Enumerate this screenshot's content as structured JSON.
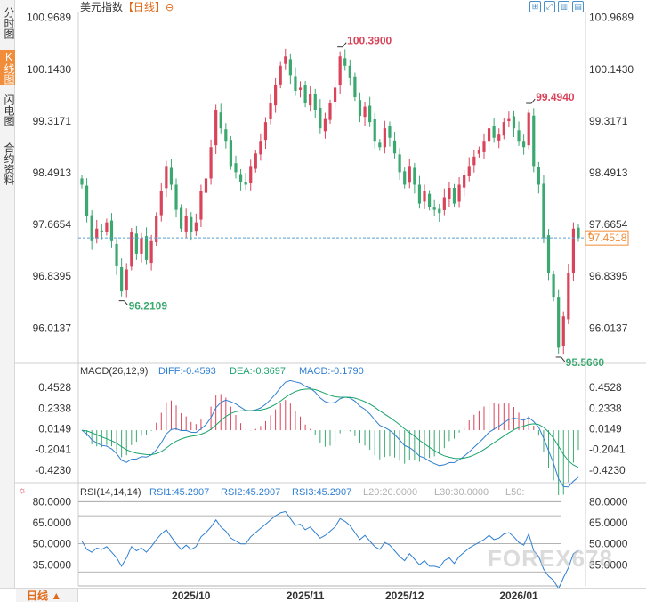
{
  "sidebar": {
    "tabs": [
      {
        "label": "分时图",
        "active": false
      },
      {
        "label": "K线图",
        "active": true
      },
      {
        "label": "闪电图",
        "active": false
      },
      {
        "label": "合约资料",
        "active": false
      }
    ]
  },
  "header": {
    "title": "美元指数",
    "period_tag": "【日线】",
    "settings_glyph": "⊖"
  },
  "toolbar": {
    "icons": [
      "fullscreen-icon",
      "expand-icon",
      "chart-type-icon",
      "settings-panel-icon"
    ]
  },
  "chart_data": {
    "type": "candlestick",
    "price_axis": {
      "ticks": [
        "100.9689",
        "100.1430",
        "99.3171",
        "98.4913",
        "97.6654",
        "96.8395",
        "96.0137"
      ],
      "min": 95.45,
      "max": 101.05
    },
    "current_price": {
      "label": "97.4518",
      "value": 97.4518
    },
    "annotations": [
      {
        "label": "100.3900",
        "type": "high",
        "index": 52
      },
      {
        "label": "99.4940",
        "type": "high",
        "index": 90
      },
      {
        "label": "96.2109",
        "type": "low",
        "index": 8
      },
      {
        "label": "95.5660",
        "type": "low",
        "index": 96
      }
    ],
    "closes": [
      98.3,
      97.8,
      97.4,
      97.6,
      97.55,
      97.7,
      97.4,
      97.0,
      96.6,
      96.95,
      97.55,
      97.2,
      97.45,
      97.1,
      97.4,
      97.8,
      98.2,
      98.6,
      98.3,
      97.9,
      97.6,
      97.8,
      97.55,
      97.7,
      98.2,
      98.4,
      98.9,
      99.5,
      99.2,
      99.0,
      98.6,
      98.5,
      98.35,
      98.3,
      98.6,
      98.8,
      99.0,
      99.3,
      99.6,
      99.9,
      100.2,
      100.35,
      100.05,
      99.8,
      99.85,
      99.6,
      99.75,
      99.5,
      99.2,
      99.35,
      99.6,
      99.85,
      100.35,
      100.2,
      100.0,
      99.7,
      99.4,
      99.55,
      99.3,
      99.0,
      98.9,
      99.2,
      99.05,
      98.8,
      98.5,
      98.3,
      98.6,
      98.3,
      98.0,
      98.2,
      97.95,
      97.9,
      97.85,
      98.1,
      98.25,
      98.0,
      98.3,
      98.45,
      98.6,
      98.75,
      98.85,
      99.0,
      99.2,
      99.05,
      99.1,
      99.3,
      99.35,
      99.2,
      99.0,
      98.9,
      99.45,
      98.6,
      98.3,
      97.45,
      96.9,
      96.5,
      95.7,
      96.2,
      96.9,
      97.6,
      97.45
    ],
    "dates": [
      "2025/10",
      "2025/11",
      "2025/12",
      "2026/01"
    ],
    "date_indices": [
      22,
      45,
      65,
      88
    ],
    "macd": {
      "title": "MACD(26,12,9)",
      "diff_label": "DIFF:-0.4593",
      "dea_label": "DEA:-0.3697",
      "macd_label": "MACD:-0.1790",
      "ticks": [
        "0.4528",
        "0.2338",
        "0.0149",
        "-0.2041",
        "-0.4230"
      ],
      "min": -0.52,
      "max": 0.54,
      "colors": {
        "diff": "#2f7fd1",
        "dea": "#1aa46b",
        "pos": "#d9445a",
        "neg": "#3ba870"
      }
    },
    "rsi": {
      "title": "RSI(14,14,14)",
      "labels": [
        {
          "text": "RSI1:45.2907",
          "color": "#2f7fd1"
        },
        {
          "text": "RSI2:45.2907",
          "color": "#2f7fd1"
        },
        {
          "text": "RSI3:45.2907",
          "color": "#2f7fd1"
        },
        {
          "text": "L20:20.0000",
          "color": "#b0b0b0"
        },
        {
          "text": "L30:30.0000",
          "color": "#b0b0b0"
        },
        {
          "text": "L50:",
          "color": "#b0b0b0"
        }
      ],
      "ticks": [
        "80.0000",
        "65.0000",
        "50.0000",
        "35.0000"
      ],
      "tick_values": [
        80,
        65,
        50,
        35
      ],
      "min": 20,
      "max": 84,
      "levels": [
        80,
        70,
        50,
        30,
        20
      ],
      "values": [
        52,
        46,
        44,
        47,
        46,
        48,
        44,
        40,
        34,
        40,
        48,
        45,
        47,
        44,
        48,
        53,
        57,
        60,
        55,
        50,
        46,
        49,
        46,
        48,
        55,
        58,
        62,
        67,
        62,
        59,
        54,
        52,
        50,
        50,
        55,
        58,
        61,
        64,
        67,
        70,
        72,
        73,
        68,
        63,
        64,
        60,
        62,
        58,
        54,
        56,
        59,
        62,
        68,
        66,
        63,
        58,
        53,
        56,
        52,
        48,
        46,
        51,
        49,
        45,
        41,
        38,
        43,
        39,
        35,
        38,
        34,
        34,
        33,
        38,
        40,
        36,
        41,
        44,
        47,
        49,
        51,
        53,
        56,
        53,
        54,
        57,
        58,
        55,
        51,
        49,
        57,
        45,
        41,
        32,
        27,
        24,
        18,
        26,
        33,
        43,
        45
      ]
    },
    "colors": {
      "up": "#d9445a",
      "down": "#3ba870",
      "price_line": "#5a9fd4",
      "current_label": "#f08c3a",
      "high_label": "#d9445a",
      "low_label": "#3ba870"
    }
  },
  "bottom": {
    "period_label": "日线 ▲"
  },
  "watermark": "FOREX678"
}
